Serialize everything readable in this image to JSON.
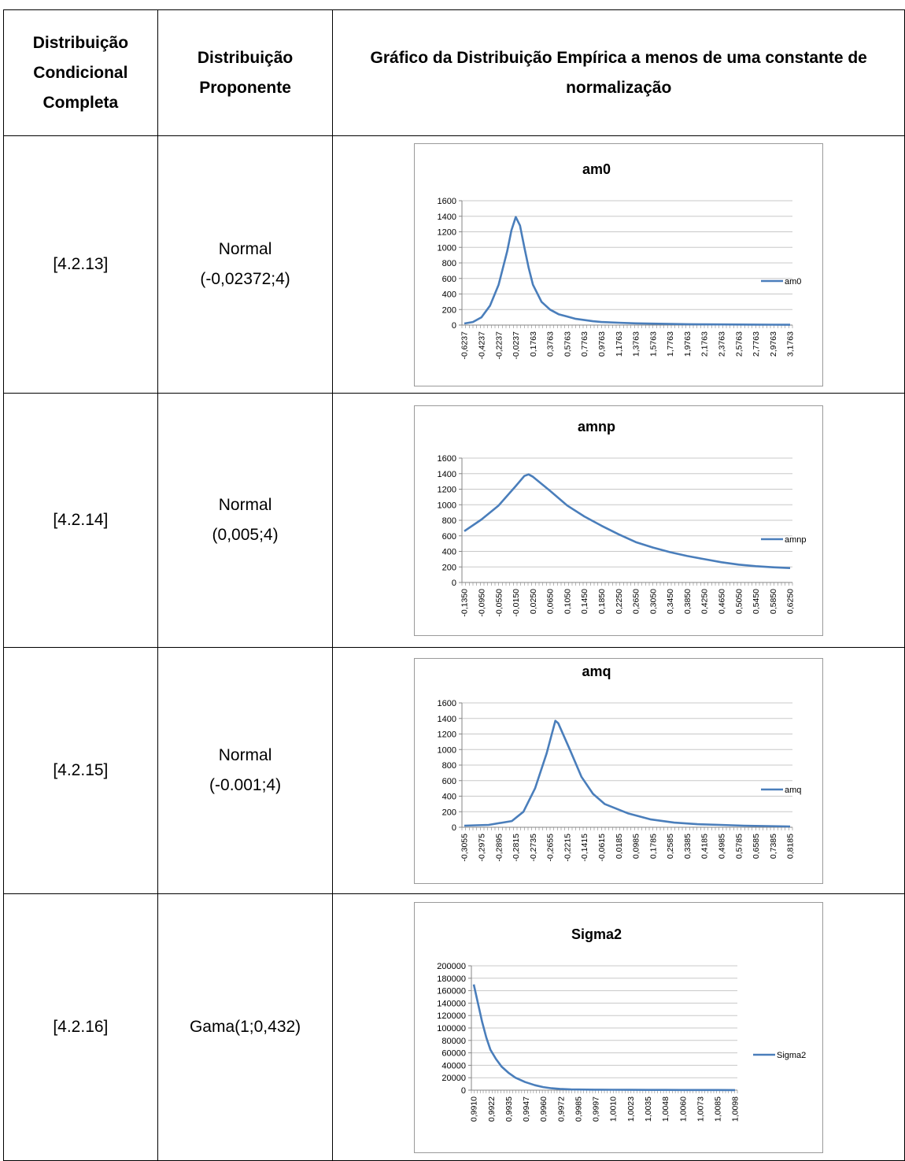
{
  "table": {
    "headers": [
      "Distribuição Condicional Completa",
      "Distribuição Proponente",
      "Gráfico da Distribuição Empírica a menos de uma constante de normalização"
    ],
    "rows": [
      {
        "ref": "[4.2.13]",
        "prop_line1": "Normal",
        "prop_line2": "(-0,02372;4)"
      },
      {
        "ref": "[4.2.14]",
        "prop_line1": "Normal",
        "prop_line2": "(0,005;4)"
      },
      {
        "ref": "[4.2.15]",
        "prop_line1": "Normal",
        "prop_line2": "(-0.001;4)"
      },
      {
        "ref": "[4.2.16]",
        "prop_line1": "Gama(1;0,432)",
        "prop_line2": ""
      }
    ]
  },
  "chart_data": [
    {
      "type": "line",
      "title": "am0",
      "series": [
        {
          "name": "am0",
          "color": "#4a7ebb",
          "x": [
            -0.6237,
            -0.5237,
            -0.4237,
            -0.3237,
            -0.2237,
            -0.1237,
            -0.0737,
            -0.0237,
            0.0263,
            0.0763,
            0.1263,
            0.1763,
            0.2763,
            0.3763,
            0.4763,
            0.5763,
            0.6763,
            0.7763,
            0.8763,
            0.9763,
            1.1763,
            1.3763,
            1.5763,
            1.7763,
            1.9763,
            2.1763,
            2.3763,
            2.5763,
            2.7763,
            2.9763,
            3.1763
          ],
          "values": [
            20,
            40,
            100,
            250,
            520,
            950,
            1220,
            1390,
            1280,
            1000,
            740,
            520,
            300,
            200,
            140,
            110,
            80,
            65,
            50,
            40,
            30,
            22,
            18,
            14,
            11,
            9,
            8,
            7,
            6,
            5,
            4
          ]
        }
      ],
      "x_tick_labels": [
        "-0,6237",
        "-0,4237",
        "-0,2237",
        "-0,0237",
        "0,1763",
        "0,3763",
        "0,5763",
        "0,7763",
        "0,9763",
        "1,1763",
        "1,3763",
        "1,5763",
        "1,7763",
        "1,9763",
        "2,1763",
        "2,3763",
        "2,5763",
        "2,7763",
        "2,9763",
        "3,1763"
      ],
      "ylim": [
        0,
        1600
      ],
      "y_ticks": [
        "0",
        "200",
        "400",
        "600",
        "800",
        "1000",
        "1200",
        "1400",
        "1600"
      ],
      "legend": "right",
      "grid": true
    },
    {
      "type": "line",
      "title": "amnp",
      "series": [
        {
          "name": "amnp",
          "color": "#4a7ebb",
          "x": [
            -0.135,
            -0.095,
            -0.055,
            -0.015,
            0.005,
            0.015,
            0.025,
            0.065,
            0.105,
            0.145,
            0.185,
            0.225,
            0.265,
            0.305,
            0.345,
            0.385,
            0.425,
            0.465,
            0.505,
            0.545,
            0.585,
            0.625
          ],
          "values": [
            660,
            810,
            990,
            1240,
            1370,
            1390,
            1360,
            1180,
            990,
            850,
            730,
            620,
            520,
            450,
            390,
            340,
            300,
            260,
            230,
            210,
            195,
            185
          ]
        }
      ],
      "x_tick_labels": [
        "-0,1350",
        "-0,0950",
        "-0,0550",
        "-0,0150",
        "0,0250",
        "0,0650",
        "0,1050",
        "0,1450",
        "0,1850",
        "0,2250",
        "0,2650",
        "0,3050",
        "0,3450",
        "0,3850",
        "0,4250",
        "0,4650",
        "0,5050",
        "0,5450",
        "0,5850",
        "0,6250"
      ],
      "ylim": [
        0,
        1600
      ],
      "y_ticks": [
        "0",
        "200",
        "400",
        "600",
        "800",
        "1000",
        "1200",
        "1400",
        "1600"
      ],
      "legend": "right",
      "grid": true
    },
    {
      "type": "line",
      "title": "amq",
      "series": [
        {
          "name": "amq",
          "color": "#4a7ebb",
          "x": [
            -0.3055,
            -0.2655,
            -0.2215,
            -0.1415,
            -0.1015,
            -0.0615,
            -0.0215,
            0.0085,
            0.0185,
            0.0585,
            0.0985,
            0.1385,
            0.1785,
            0.2585,
            0.3385,
            0.4185,
            0.4985,
            0.5785,
            0.6585,
            0.7385,
            0.8185
          ],
          "values": [
            20,
            25,
            30,
            80,
            200,
            500,
            950,
            1370,
            1340,
            1000,
            650,
            430,
            300,
            180,
            100,
            60,
            40,
            30,
            20,
            15,
            10
          ]
        }
      ],
      "x_tick_labels": [
        "-0,3055",
        "-0,2975",
        "-0,2895",
        "-0,2815",
        "-0,2735",
        "-0,2655",
        "-0,2215",
        "-0,1415",
        "-0,0615",
        "0,0185",
        "0,0985",
        "0,1785",
        "0,2585",
        "0,3385",
        "0,4185",
        "0,4985",
        "0,5785",
        "0,6585",
        "0,7385",
        "0,8185"
      ],
      "ylim": [
        0,
        1600
      ],
      "y_ticks": [
        "0",
        "200",
        "400",
        "600",
        "800",
        "1000",
        "1200",
        "1400",
        "1600"
      ],
      "legend": "right",
      "grid": true
    },
    {
      "type": "line",
      "title": "Sigma2",
      "series": [
        {
          "name": "Sigma2",
          "color": "#4a7ebb",
          "x": [
            0.991,
            0.9913,
            0.9916,
            0.9919,
            0.9922,
            0.9926,
            0.993,
            0.9935,
            0.994,
            0.9947,
            0.9954,
            0.996,
            0.9966,
            0.9972,
            0.998,
            0.9997,
            1.001,
            1.0023,
            1.0035,
            1.0048,
            1.006,
            1.0073,
            1.0085,
            1.0098
          ],
          "values": [
            170000,
            140000,
            110000,
            85000,
            65000,
            50000,
            38000,
            28000,
            20000,
            13000,
            8000,
            5000,
            3000,
            2000,
            1200,
            800,
            600,
            500,
            400,
            350,
            300,
            250,
            200,
            150
          ]
        }
      ],
      "x_tick_labels": [
        "0,9910",
        "0,9922",
        "0,9935",
        "0,9947",
        "0,9960",
        "0,9972",
        "0,9985",
        "0,9997",
        "1,0010",
        "1,0023",
        "1,0035",
        "1,0048",
        "1,0060",
        "1,0073",
        "1,0085",
        "1,0098"
      ],
      "ylim": [
        0,
        200000
      ],
      "y_ticks": [
        "0",
        "20000",
        "40000",
        "60000",
        "80000",
        "100000",
        "120000",
        "140000",
        "160000",
        "180000",
        "200000"
      ],
      "legend": "right",
      "grid": true
    }
  ]
}
